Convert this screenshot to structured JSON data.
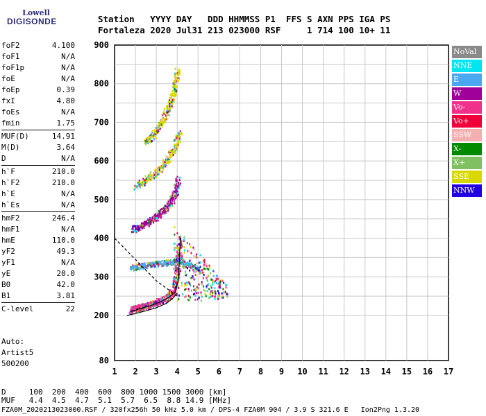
{
  "logo": {
    "line1": "Lowell",
    "line2": "DIGISONDE"
  },
  "header": {
    "line1": "Station   YYYY DAY   DDD HHMMSS P1  FFS S AXN PPS IGA PS",
    "line2": "Fortaleza 2020 Jul31 213 023000 RSF     1 714 100 10+ 11"
  },
  "parameters": [
    {
      "label": "foF2",
      "value": "4.100"
    },
    {
      "label": "foF1",
      "value": "N/A"
    },
    {
      "label": "foF1p",
      "value": "N/A"
    },
    {
      "label": "foE",
      "value": "N/A"
    },
    {
      "label": "foEp",
      "value": "0.39"
    },
    {
      "label": "fxI",
      "value": "4.80"
    },
    {
      "label": "foEs",
      "value": "N/A"
    },
    {
      "label": "fmin",
      "value": "1.75"
    },
    {
      "label": "MUF(D)",
      "value": "14.91"
    },
    {
      "label": "M(D)",
      "value": "3.64"
    },
    {
      "label": "D",
      "value": "N/A"
    },
    {
      "label": "h`F",
      "value": "210.0"
    },
    {
      "label": "h`F2",
      "value": "210.0"
    },
    {
      "label": "h`E",
      "value": "N/A"
    },
    {
      "label": "h`Es",
      "value": "N/A"
    },
    {
      "label": "hmF2",
      "value": "246.4"
    },
    {
      "label": "hmF1",
      "value": "N/A"
    },
    {
      "label": "hmE",
      "value": "110.0"
    },
    {
      "label": "yF2",
      "value": "49.3"
    },
    {
      "label": "yF1",
      "value": "N/A"
    },
    {
      "label": "yE",
      "value": "20.0"
    },
    {
      "label": "B0",
      "value": "42.0"
    },
    {
      "label": "B1",
      "value": "3.81"
    },
    {
      "label": "C-level",
      "value": "22"
    }
  ],
  "auto": {
    "line1": "Auto:",
    "line2": "Artist5",
    "line3": "500200"
  },
  "muf_table": {
    "d_line": "D     100  200  400  600  800 1000 1500 3000 [km]",
    "muf_line": "MUF   4.4  4.5  4.7  5.1  5.7  6.5  8.8 14.9 [MHz]"
  },
  "footer": "FZA0M_2020213023000.RSF / 320fx256h 50 kHz 5.0 km / DPS-4 FZA0M 904 / 3.9 S 321.6 E   Ion2Png 1.3.20",
  "legend": [
    {
      "label": "NoVal",
      "color": "#8a8a8a"
    },
    {
      "label": "NNE",
      "color": "#00e5f0"
    },
    {
      "label": "E",
      "color": "#4aa8f0"
    },
    {
      "label": "W",
      "color": "#a0009a"
    },
    {
      "label": "Vo-",
      "color": "#f0308a"
    },
    {
      "label": "Vo+",
      "color": "#f0003a"
    },
    {
      "label": "SSW",
      "color": "#f4b0b0"
    },
    {
      "label": "X-",
      "color": "#008a00"
    },
    {
      "label": "X+",
      "color": "#80c060"
    },
    {
      "label": "SSE",
      "color": "#d8d800"
    },
    {
      "label": "NNW",
      "color": "#2000e0"
    }
  ],
  "chart_data": {
    "type": "scatter",
    "title": "",
    "xlabel": "",
    "ylabel": "",
    "xlim": [
      1,
      17
    ],
    "ylim": [
      80,
      900
    ],
    "x_ticks": [
      "1",
      "2",
      "3",
      "4",
      "5",
      "6",
      "7",
      "8",
      "9",
      "10",
      "11",
      "12",
      "13",
      "14",
      "15",
      "16",
      "17"
    ],
    "y_ticks": [
      "80",
      "200",
      "300",
      "400",
      "500",
      "600",
      "700",
      "800",
      "900"
    ],
    "grid": true,
    "traces": [
      {
        "name": "F2 trace",
        "color": "#f0308a",
        "points": [
          [
            1.8,
            215
          ],
          [
            2.0,
            220
          ],
          [
            2.2,
            222
          ],
          [
            2.4,
            225
          ],
          [
            2.6,
            228
          ],
          [
            2.8,
            232
          ],
          [
            3.0,
            236
          ],
          [
            3.2,
            240
          ],
          [
            3.4,
            245
          ],
          [
            3.6,
            252
          ],
          [
            3.8,
            265
          ],
          [
            3.95,
            300
          ],
          [
            4.05,
            350
          ],
          [
            4.1,
            400
          ]
        ]
      },
      {
        "name": "2nd hop",
        "color": "#a0009a",
        "points": [
          [
            1.9,
            425
          ],
          [
            2.2,
            432
          ],
          [
            2.5,
            440
          ],
          [
            2.8,
            450
          ],
          [
            3.1,
            462
          ],
          [
            3.4,
            478
          ],
          [
            3.7,
            498
          ],
          [
            3.9,
            520
          ],
          [
            4.05,
            560
          ]
        ]
      },
      {
        "name": "3rd hop",
        "color": "#d8d800",
        "points": [
          [
            2.0,
            535
          ],
          [
            2.4,
            550
          ],
          [
            2.8,
            565
          ],
          [
            3.2,
            585
          ],
          [
            3.6,
            610
          ],
          [
            3.9,
            640
          ],
          [
            4.1,
            680
          ]
        ]
      },
      {
        "name": "4th hop",
        "color": "#d8d800",
        "points": [
          [
            2.5,
            650
          ],
          [
            2.8,
            665
          ],
          [
            3.1,
            690
          ],
          [
            3.4,
            720
          ],
          [
            3.7,
            760
          ],
          [
            3.9,
            800
          ],
          [
            4.0,
            840
          ]
        ]
      },
      {
        "name": "E spread",
        "color": "#4aa8f0",
        "points": [
          [
            1.8,
            325
          ],
          [
            2.2,
            330
          ],
          [
            2.6,
            332
          ],
          [
            3.0,
            335
          ],
          [
            3.4,
            338
          ],
          [
            3.8,
            340
          ],
          [
            4.2,
            345
          ],
          [
            4.6,
            330
          ],
          [
            5.0,
            320
          ]
        ]
      }
    ],
    "profile_curves": [
      {
        "name": "profile",
        "color": "#000000",
        "points": [
          [
            1.6,
            200
          ],
          [
            2.0,
            205
          ],
          [
            2.5,
            212
          ],
          [
            3.0,
            220
          ],
          [
            3.5,
            232
          ],
          [
            3.8,
            245
          ],
          [
            4.0,
            258
          ]
        ]
      },
      {
        "name": "profile2",
        "color": "#000000",
        "points": [
          [
            1.75,
            210
          ],
          [
            2.2,
            217
          ],
          [
            2.7,
            225
          ],
          [
            3.2,
            235
          ],
          [
            3.6,
            247
          ],
          [
            3.9,
            260
          ],
          [
            4.05,
            290
          ],
          [
            4.1,
            340
          ],
          [
            4.15,
            400
          ]
        ]
      },
      {
        "name": "dashed",
        "color": "#000000",
        "points": [
          [
            1.0,
            400
          ],
          [
            2.0,
            345
          ],
          [
            3.0,
            290
          ],
          [
            4.0,
            250
          ]
        ]
      }
    ]
  }
}
